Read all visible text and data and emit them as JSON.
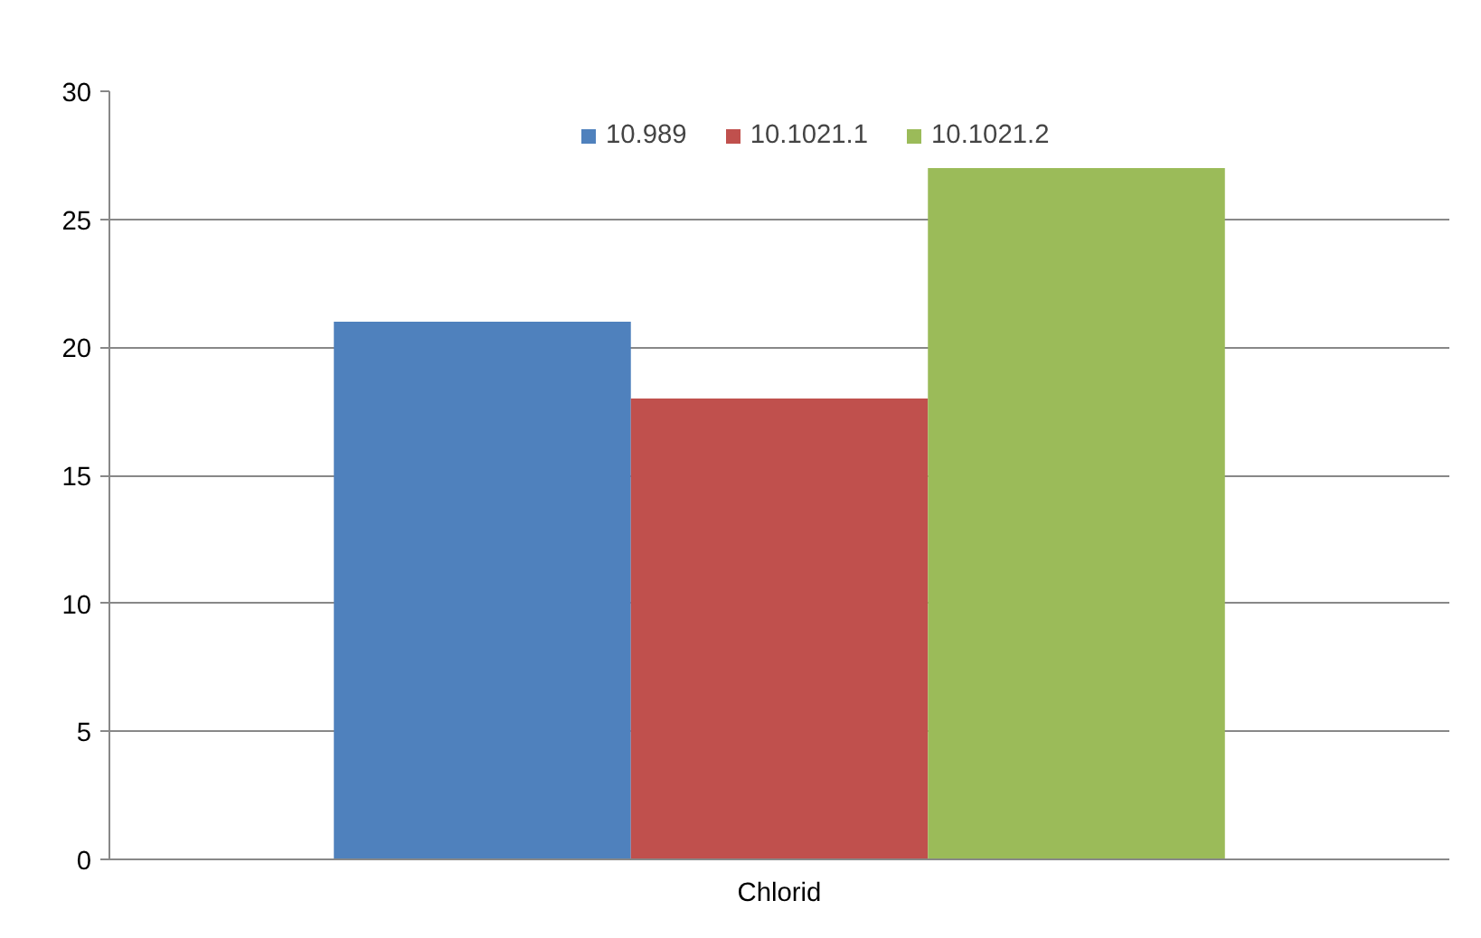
{
  "chart_data": {
    "type": "bar",
    "categories": [
      "Chlorid"
    ],
    "series": [
      {
        "name": "10.989",
        "color": "#4f81bd",
        "values": [
          21
        ]
      },
      {
        "name": "10.1021.1",
        "color": "#c0504d",
        "values": [
          18
        ]
      },
      {
        "name": "10.1021.2",
        "color": "#9bbb59",
        "values": [
          27
        ]
      }
    ],
    "ylim": [
      0,
      30
    ],
    "yticks": [
      0,
      5,
      10,
      15,
      20,
      25,
      30
    ],
    "grid": "y",
    "legend": "top"
  }
}
